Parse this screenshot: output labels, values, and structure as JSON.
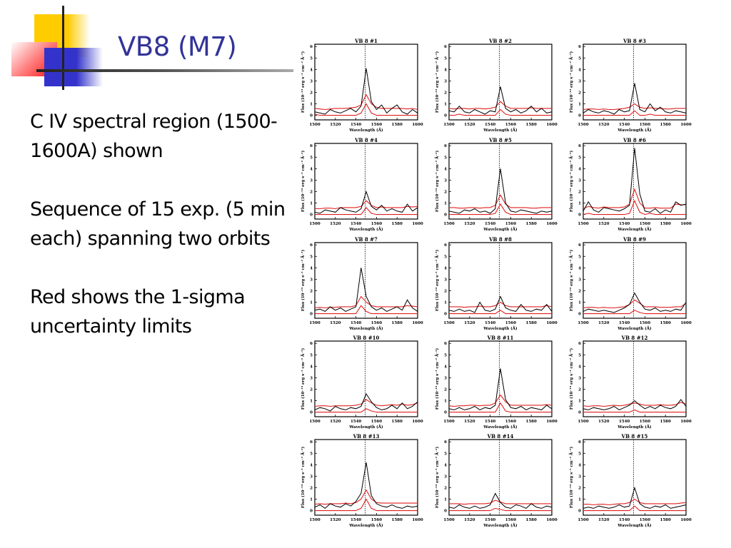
{
  "slide": {
    "title": "VB8 (M7)",
    "bullets": [
      "C IV spectral region (1500-1600A) shown",
      "Sequence of 15 exp. (5 min each) spanning two orbits",
      "Red shows the 1-sigma uncertainty limits"
    ],
    "colors": {
      "title": "#333399",
      "accent_yellow": "#ffcc00",
      "accent_red": "#ff2020",
      "accent_blue": "#3333cc",
      "uncertainty": "#e02020",
      "flux": "#000000"
    }
  },
  "chart_data": {
    "type": "line",
    "xlabel": "Wavelength (Å)",
    "ylabel": "Flux (10⁻¹⁴ erg s⁻¹ cm⁻² Å⁻¹)",
    "xlim": [
      1500,
      1600
    ],
    "ylim": [
      -0.4,
      6.2
    ],
    "xticks": [
      1500,
      1520,
      1540,
      1560,
      1580,
      1600
    ],
    "yticks": [
      0,
      1,
      2,
      3,
      4,
      5,
      6
    ],
    "reference_line_x": 1549,
    "x": [
      1500,
      1505,
      1510,
      1515,
      1520,
      1525,
      1530,
      1535,
      1540,
      1545,
      1550,
      1555,
      1560,
      1565,
      1570,
      1575,
      1580,
      1585,
      1590,
      1595,
      1600
    ],
    "panels": [
      {
        "title": "VB 8 #1",
        "flux": [
          0.3,
          0.2,
          0.1,
          0.5,
          0.3,
          0.2,
          0.4,
          0.6,
          0.3,
          0.8,
          4.1,
          1.2,
          0.5,
          0.9,
          0.2,
          0.6,
          0.9,
          0.3,
          0.1,
          0.5,
          0.2
        ],
        "upper": [
          0.6,
          0.55,
          0.5,
          0.55,
          0.6,
          0.6,
          0.6,
          0.65,
          0.7,
          0.9,
          1.8,
          1.0,
          0.7,
          0.6,
          0.6,
          0.6,
          0.6,
          0.6,
          0.55,
          0.6,
          0.5
        ],
        "lower": [
          0.1,
          0,
          0,
          0,
          0,
          0,
          0,
          0,
          0,
          0.2,
          1.0,
          0.2,
          0,
          0,
          0,
          0,
          0,
          0,
          0,
          0,
          0
        ]
      },
      {
        "title": "VB 8 #2",
        "flux": [
          0.4,
          0.3,
          0.8,
          0.3,
          0.2,
          0.5,
          0.3,
          0.1,
          0.4,
          0.3,
          2.5,
          0.6,
          0.3,
          0.5,
          0.2,
          0.4,
          0.8,
          0.3,
          0.6,
          0.2,
          0.3
        ],
        "upper": [
          0.6,
          0.55,
          0.6,
          0.6,
          0.55,
          0.6,
          0.6,
          0.55,
          0.6,
          0.7,
          1.2,
          0.8,
          0.6,
          0.6,
          0.6,
          0.6,
          0.65,
          0.6,
          0.6,
          0.6,
          0.6
        ],
        "lower": [
          0,
          0,
          0.1,
          0,
          0,
          0,
          0,
          0,
          0,
          0,
          0.5,
          0.1,
          0,
          0,
          0,
          0,
          0,
          0,
          0,
          0,
          0
        ]
      },
      {
        "title": "VB 8 #3",
        "flux": [
          0.2,
          0.5,
          0.3,
          0.2,
          0.4,
          0.3,
          0.1,
          0.5,
          0.3,
          0.4,
          2.8,
          0.5,
          0.3,
          1.0,
          0.4,
          0.7,
          0.3,
          0.2,
          0.4,
          0.3,
          0.2
        ],
        "upper": [
          0.5,
          0.55,
          0.55,
          0.5,
          0.55,
          0.5,
          0.5,
          0.55,
          0.6,
          0.7,
          1.0,
          0.7,
          0.6,
          0.65,
          0.6,
          0.6,
          0.55,
          0.55,
          0.6,
          0.6,
          0.6
        ],
        "lower": [
          0,
          0,
          0,
          0,
          0,
          0,
          0,
          0,
          0,
          0,
          0.4,
          0,
          0,
          0.1,
          0,
          0,
          0,
          0,
          0,
          0,
          0
        ]
      },
      {
        "title": "VB 8 #4",
        "flux": [
          0.2,
          0.1,
          0.4,
          0.3,
          0.2,
          0.6,
          0.4,
          0.3,
          0.2,
          0.5,
          2.0,
          0.7,
          0.4,
          0.8,
          0.3,
          0.5,
          0.3,
          0.2,
          0.9,
          0.3,
          0.6
        ],
        "upper": [
          0.5,
          0.5,
          0.55,
          0.55,
          0.5,
          0.6,
          0.6,
          0.6,
          0.6,
          0.7,
          1.2,
          0.8,
          0.6,
          0.65,
          0.6,
          0.6,
          0.6,
          0.6,
          0.7,
          0.65,
          0.7
        ],
        "lower": [
          0,
          0,
          0,
          0,
          0,
          0,
          0,
          0,
          0,
          0,
          0.6,
          0.1,
          0,
          0,
          0,
          0,
          0,
          0,
          0,
          0,
          0
        ]
      },
      {
        "title": "VB 8 #5",
        "flux": [
          0.3,
          0.2,
          0.1,
          0.4,
          0.3,
          0.5,
          0.2,
          0.3,
          0.1,
          0.5,
          4.0,
          1.0,
          0.3,
          0.2,
          0.4,
          0.3,
          0.2,
          0.1,
          0.3,
          0.2,
          0.3
        ],
        "upper": [
          0.6,
          0.6,
          0.55,
          0.55,
          0.6,
          0.6,
          0.55,
          0.6,
          0.6,
          0.8,
          1.7,
          0.9,
          0.6,
          0.6,
          0.6,
          0.6,
          0.55,
          0.55,
          0.6,
          0.6,
          0.6
        ],
        "lower": [
          0,
          0,
          0,
          0,
          0,
          0,
          0,
          0,
          0,
          0.1,
          0.9,
          0.2,
          0,
          0,
          0,
          0,
          0,
          0,
          0,
          0,
          0
        ]
      },
      {
        "title": "VB 8 #6",
        "flux": [
          0.3,
          1.1,
          0.4,
          0.2,
          0.6,
          0.5,
          0.4,
          0.3,
          0.5,
          0.8,
          5.8,
          1.8,
          0.3,
          0.2,
          0.5,
          0.1,
          0.4,
          0.2,
          1.1,
          0.8,
          0.9
        ],
        "upper": [
          0.5,
          0.7,
          0.6,
          0.55,
          0.65,
          0.6,
          0.6,
          0.6,
          0.65,
          0.9,
          2.2,
          1.0,
          0.55,
          0.55,
          0.6,
          0.55,
          0.55,
          0.55,
          0.9,
          0.85,
          0.85
        ],
        "lower": [
          0,
          0.1,
          0,
          0,
          0,
          0,
          0,
          0,
          0,
          0.1,
          1.2,
          0.2,
          0,
          0.1,
          0,
          0,
          0,
          0,
          0,
          0,
          0
        ]
      },
      {
        "title": "VB 8 #7",
        "flux": [
          0.3,
          0.4,
          0.2,
          0.6,
          0.3,
          0.5,
          0.2,
          0.4,
          0.6,
          4.0,
          1.5,
          0.6,
          0.3,
          0.5,
          0.2,
          0.4,
          0.6,
          0.3,
          1.2,
          0.5,
          0.2
        ],
        "upper": [
          0.5,
          0.55,
          0.5,
          0.55,
          0.55,
          0.6,
          0.6,
          0.6,
          0.7,
          1.5,
          1.0,
          0.7,
          0.6,
          0.6,
          0.6,
          0.6,
          0.6,
          0.6,
          0.7,
          0.65,
          0.6
        ],
        "lower": [
          0,
          0,
          0,
          0,
          0,
          0,
          0,
          0,
          0,
          0.7,
          0.2,
          0,
          0,
          0,
          0,
          0,
          0,
          0,
          0,
          0,
          0
        ]
      },
      {
        "title": "VB 8 #8",
        "flux": [
          0.3,
          0.2,
          0.4,
          0.2,
          0.3,
          0.1,
          1.0,
          0.3,
          0.2,
          0.4,
          1.5,
          0.5,
          0.3,
          0.2,
          0.8,
          0.3,
          0.2,
          0.4,
          0.3,
          0.8,
          0.2
        ],
        "upper": [
          0.6,
          0.6,
          0.6,
          0.55,
          0.6,
          0.6,
          0.65,
          0.6,
          0.6,
          0.7,
          1.0,
          0.7,
          0.6,
          0.6,
          0.6,
          0.6,
          0.6,
          0.6,
          0.6,
          0.7,
          0.6
        ],
        "lower": [
          0,
          0,
          0,
          0,
          0,
          0,
          0,
          0,
          0,
          0,
          0.3,
          0,
          0,
          0,
          0,
          0,
          0,
          0,
          0,
          0,
          0
        ]
      },
      {
        "title": "VB 8 #9",
        "flux": [
          0.2,
          0.4,
          0.3,
          0.2,
          0.3,
          0.2,
          0.1,
          0.3,
          0.5,
          0.8,
          1.8,
          1.0,
          0.4,
          0.3,
          0.5,
          0.2,
          0.3,
          0.2,
          0.4,
          0.3,
          1.0
        ],
        "upper": [
          0.5,
          0.55,
          0.55,
          0.5,
          0.55,
          0.5,
          0.5,
          0.55,
          0.6,
          0.8,
          1.2,
          0.9,
          0.6,
          0.6,
          0.6,
          0.55,
          0.55,
          0.55,
          0.6,
          0.6,
          0.9
        ],
        "lower": [
          0,
          0,
          0,
          0,
          0,
          0,
          0,
          0,
          0,
          0,
          0.3,
          0.1,
          0,
          0,
          0,
          0,
          0,
          0,
          0,
          0,
          0
        ]
      },
      {
        "title": "VB 8 #10",
        "flux": [
          0.2,
          0.4,
          0.3,
          0.1,
          0.5,
          0.3,
          0.2,
          0.4,
          0.3,
          0.5,
          1.6,
          0.9,
          0.4,
          0.2,
          0.3,
          0.6,
          0.3,
          0.8,
          0.3,
          0.5,
          0.9
        ],
        "upper": [
          0.5,
          0.55,
          0.55,
          0.5,
          0.55,
          0.55,
          0.55,
          0.55,
          0.6,
          0.7,
          1.1,
          0.8,
          0.6,
          0.55,
          0.6,
          0.65,
          0.6,
          0.7,
          0.6,
          0.65,
          0.8
        ],
        "lower": [
          0,
          0,
          0,
          0,
          0,
          0,
          0,
          0,
          0,
          0,
          0.3,
          0.1,
          0,
          0,
          0,
          0,
          0,
          0,
          0,
          0,
          0
        ]
      },
      {
        "title": "VB 8 #11",
        "flux": [
          0.3,
          0.2,
          0.4,
          0.2,
          0.3,
          0.5,
          0.2,
          0.4,
          0.3,
          0.6,
          3.8,
          1.1,
          0.4,
          0.3,
          0.5,
          0.2,
          0.4,
          0.3,
          0.2,
          0.6,
          0.3
        ],
        "upper": [
          0.55,
          0.5,
          0.55,
          0.55,
          0.6,
          0.6,
          0.55,
          0.6,
          0.6,
          0.8,
          1.5,
          0.9,
          0.6,
          0.6,
          0.6,
          0.6,
          0.6,
          0.6,
          0.6,
          0.65,
          0.6
        ],
        "lower": [
          0,
          0,
          0,
          0,
          0,
          0,
          0,
          0,
          0,
          0,
          0.8,
          0.1,
          0,
          0,
          0,
          0,
          0,
          0,
          0,
          0,
          0
        ]
      },
      {
        "title": "VB 8 #12",
        "flux": [
          0.3,
          0.2,
          0.4,
          0.3,
          0.2,
          0.3,
          0.5,
          0.2,
          0.4,
          0.6,
          1.0,
          0.6,
          0.3,
          0.5,
          0.3,
          0.6,
          0.4,
          0.3,
          0.5,
          1.1,
          0.5
        ],
        "upper": [
          0.55,
          0.5,
          0.55,
          0.55,
          0.5,
          0.55,
          0.6,
          0.55,
          0.6,
          0.7,
          0.8,
          0.7,
          0.6,
          0.6,
          0.6,
          0.65,
          0.6,
          0.6,
          0.65,
          0.85,
          0.7
        ],
        "lower": [
          0,
          0,
          0,
          0,
          0,
          0,
          0,
          0,
          0,
          0,
          0.2,
          0,
          0,
          0,
          0,
          0,
          0,
          0,
          0,
          0,
          0
        ]
      },
      {
        "title": "VB 8 #13",
        "flux": [
          0.3,
          0.5,
          0.2,
          0.6,
          0.4,
          0.3,
          0.6,
          0.4,
          0.8,
          1.5,
          4.2,
          1.3,
          0.6,
          0.4,
          0.3,
          0.5,
          0.3,
          0.2,
          0.4,
          0.3,
          0.4
        ],
        "upper": [
          0.55,
          0.6,
          0.55,
          0.6,
          0.6,
          0.6,
          0.65,
          0.6,
          0.7,
          1.0,
          1.8,
          1.0,
          0.7,
          0.65,
          0.65,
          0.65,
          0.65,
          0.65,
          0.65,
          0.65,
          0.65
        ],
        "lower": [
          0,
          0,
          0,
          0,
          0,
          0,
          0,
          0,
          0,
          0.2,
          1.0,
          0.2,
          0,
          0,
          0,
          0,
          0,
          0,
          0,
          0,
          0
        ]
      },
      {
        "title": "VB 8 #14",
        "flux": [
          0.3,
          0.2,
          0.5,
          0.3,
          0.2,
          0.4,
          0.2,
          0.3,
          0.5,
          1.5,
          0.7,
          0.3,
          0.2,
          0.5,
          0.4,
          0.2,
          0.6,
          0.3,
          0.2,
          0.4,
          0.3
        ],
        "upper": [
          0.6,
          0.6,
          0.6,
          0.55,
          0.6,
          0.6,
          0.6,
          0.6,
          0.65,
          0.9,
          0.75,
          0.6,
          0.6,
          0.6,
          0.6,
          0.6,
          0.6,
          0.6,
          0.6,
          0.6,
          0.6
        ],
        "lower": [
          0,
          0,
          0,
          0,
          0,
          0,
          0,
          0,
          0,
          0.2,
          0.1,
          0,
          0,
          0,
          0,
          0,
          0,
          0,
          0,
          0,
          0
        ]
      },
      {
        "title": "VB 8 #15",
        "flux": [
          0.2,
          0.3,
          0.2,
          0.4,
          0.3,
          0.2,
          0.3,
          0.5,
          0.3,
          0.4,
          2.0,
          0.6,
          0.3,
          0.2,
          0.4,
          0.3,
          0.5,
          0.2,
          0.3,
          0.4,
          0.5
        ],
        "upper": [
          0.55,
          0.55,
          0.5,
          0.55,
          0.55,
          0.5,
          0.55,
          0.6,
          0.6,
          0.7,
          1.0,
          0.7,
          0.6,
          0.6,
          0.6,
          0.6,
          0.6,
          0.6,
          0.6,
          0.65,
          0.7
        ],
        "lower": [
          0,
          0,
          0,
          0,
          0,
          0,
          0,
          0,
          0,
          0,
          0.4,
          0,
          0,
          0,
          0,
          0,
          0,
          0,
          0,
          0,
          0
        ]
      }
    ]
  }
}
